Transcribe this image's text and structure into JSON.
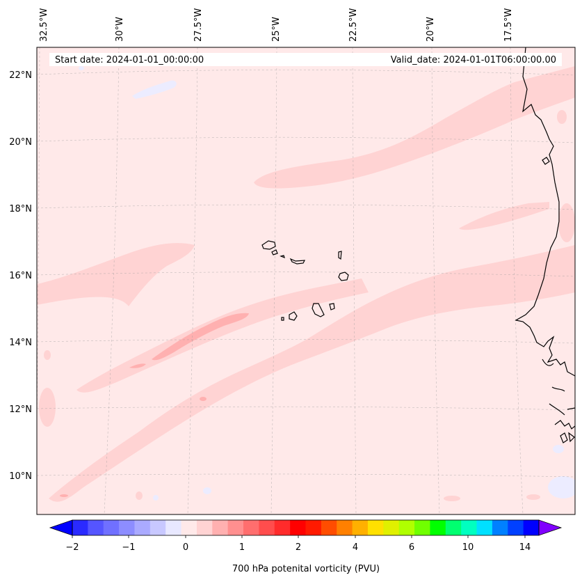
{
  "header": {
    "start_date": "Start date: 2024-01-01_00:00:00",
    "valid_date": "Valid_date: 2024-01-01T06:00:00.00"
  },
  "map": {
    "lon_labels": [
      "32.5°W",
      "30°W",
      "27.5°W",
      "25°W",
      "22.5°W",
      "20°W",
      "17.5°W"
    ],
    "lat_labels": [
      "22°N",
      "20°N",
      "18°N",
      "16°N",
      "14°N",
      "12°N",
      "10°N"
    ],
    "field_colors": {
      "background": "#ffe9e9",
      "light_band": "#ffd3d3",
      "core": "#ffb0b0",
      "negative_patch": "#ececff"
    },
    "land_outline_color": "#000000"
  },
  "colorbar": {
    "label": "700 hPa potenital vorticity (PVU)",
    "tick_labels": [
      "−2",
      "−1",
      "0",
      "1",
      "2",
      "4",
      "6",
      "10",
      "14"
    ],
    "colors": [
      "#0000ff",
      "#2a2aff",
      "#5555ff",
      "#7070ff",
      "#8d8dff",
      "#aaaaff",
      "#c8c8ff",
      "#e8e8ff",
      "#ffe9e9",
      "#ffd3d3",
      "#ffb0b0",
      "#ff8f8f",
      "#ff6e6e",
      "#ff4d4d",
      "#ff2b2b",
      "#ff0000",
      "#ff1a00",
      "#ff4d00",
      "#ff8000",
      "#ffb000",
      "#ffe000",
      "#e0f000",
      "#b0ff00",
      "#70ff00",
      "#00ff00",
      "#00ff70",
      "#00ffc0",
      "#00e0ff",
      "#0080ff",
      "#0040ff",
      "#0000ff",
      "#8000ff"
    ]
  }
}
